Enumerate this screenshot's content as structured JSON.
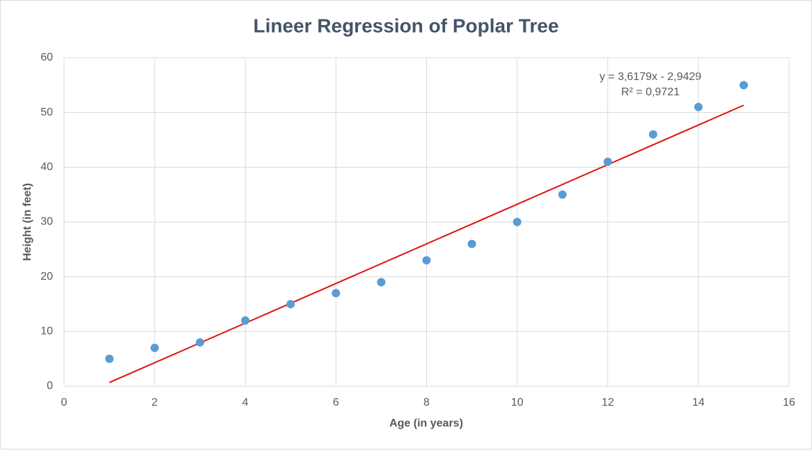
{
  "chart_data": {
    "type": "scatter",
    "title": "Lineer Regression of Poplar Tree",
    "x_label": "Age (in years)",
    "y_label": "Height (in feet)",
    "x": [
      1,
      2,
      3,
      4,
      5,
      6,
      7,
      8,
      9,
      10,
      11,
      12,
      13,
      14,
      15
    ],
    "values": [
      5,
      7,
      8,
      12,
      15,
      17,
      19,
      23,
      26,
      30,
      35,
      41,
      46,
      51,
      55
    ],
    "color": "#5b9bd5",
    "xlim": [
      0,
      16
    ],
    "xticks": [
      0,
      2,
      4,
      6,
      8,
      10,
      12,
      14,
      16
    ],
    "ylim": [
      0,
      60
    ],
    "yticks": [
      0,
      10,
      20,
      30,
      40,
      50,
      60
    ],
    "grid": true,
    "trendline": {
      "equation": "y = 3,6179x - 2,9429",
      "r_squared": "R² = 0,9721",
      "slope": 3.6179,
      "intercept": -2.9429,
      "color": "#e01010"
    }
  }
}
